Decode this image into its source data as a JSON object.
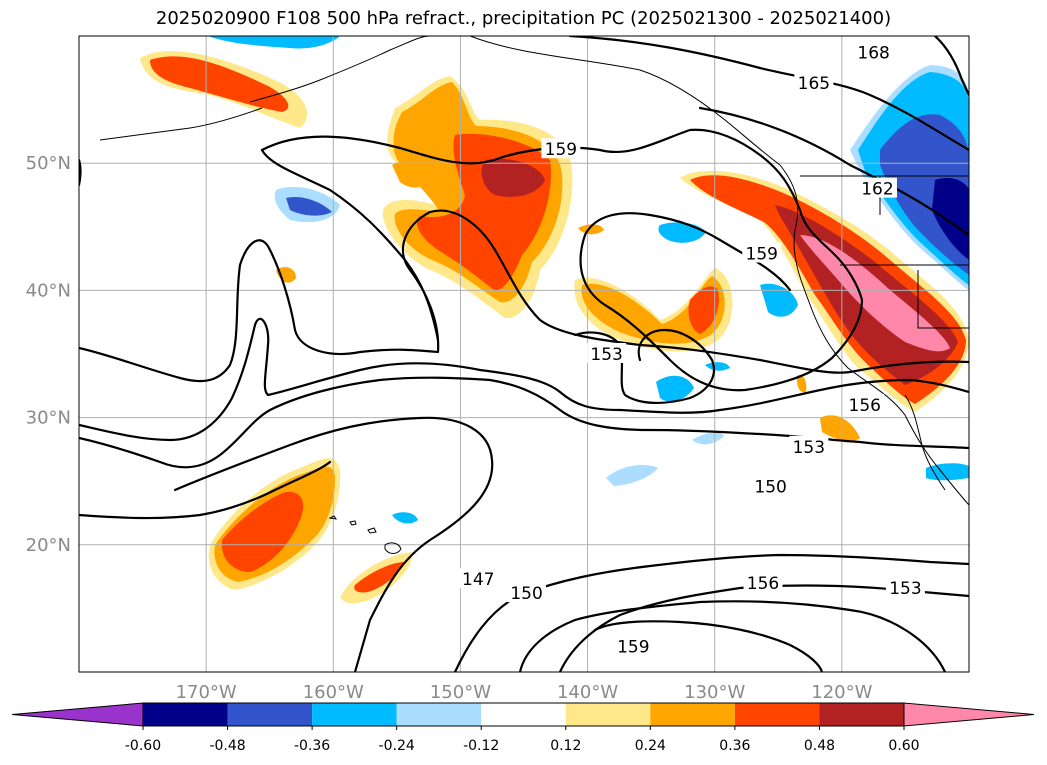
{
  "title": "2025020900 F108 500 hPa refract., precipitation PC (2025021300 - 2025021400)",
  "map": {
    "projection": "PlateCarree",
    "lon_range": [
      -180,
      -110
    ],
    "lat_range": [
      10,
      60
    ],
    "grid": true,
    "lon_ticks": [
      {
        "value": -170,
        "label": "170°W"
      },
      {
        "value": -160,
        "label": "160°W"
      },
      {
        "value": -150,
        "label": "150°W"
      },
      {
        "value": -140,
        "label": "140°W"
      },
      {
        "value": -130,
        "label": "130°W"
      },
      {
        "value": -120,
        "label": "120°W"
      }
    ],
    "lat_ticks": [
      {
        "value": 20,
        "label": "20°N"
      },
      {
        "value": 30,
        "label": "30°N"
      },
      {
        "value": 40,
        "label": "40°N"
      },
      {
        "value": 50,
        "label": "50°N"
      }
    ],
    "contour_labels": [
      {
        "text": "168",
        "lon": -117.5,
        "lat": 58.7
      },
      {
        "text": "165",
        "lon": -122.2,
        "lat": 56.3
      },
      {
        "text": "162",
        "lon": -117.2,
        "lat": 48.0
      },
      {
        "text": "159",
        "lon": -142.1,
        "lat": 51.1
      },
      {
        "text": "159",
        "lon": -126.3,
        "lat": 42.9
      },
      {
        "text": "153",
        "lon": -138.5,
        "lat": 35.0
      },
      {
        "text": "156",
        "lon": -118.2,
        "lat": 31.0
      },
      {
        "text": "153",
        "lon": -122.6,
        "lat": 27.7
      },
      {
        "text": "150",
        "lon": -125.6,
        "lat": 24.6
      },
      {
        "text": "147",
        "lon": -148.6,
        "lat": 17.3
      },
      {
        "text": "150",
        "lon": -144.8,
        "lat": 16.2
      },
      {
        "text": "156",
        "lon": -126.2,
        "lat": 17.0
      },
      {
        "text": "153",
        "lon": -115.0,
        "lat": 16.6
      },
      {
        "text": "159",
        "lon": -136.4,
        "lat": 12.0
      }
    ]
  },
  "colorbar": {
    "levels": [
      "-0.60",
      "-0.48",
      "-0.36",
      "-0.24",
      "-0.12",
      "0.12",
      "0.24",
      "0.36",
      "0.48",
      "0.60"
    ],
    "colors": [
      "#9933cc",
      "#000088",
      "#3355cc",
      "#00bbff",
      "#aaddff",
      "#ffffff",
      "#ffe88a",
      "#ffa500",
      "#ff4400",
      "#b22222",
      "#ff88aa"
    ]
  }
}
